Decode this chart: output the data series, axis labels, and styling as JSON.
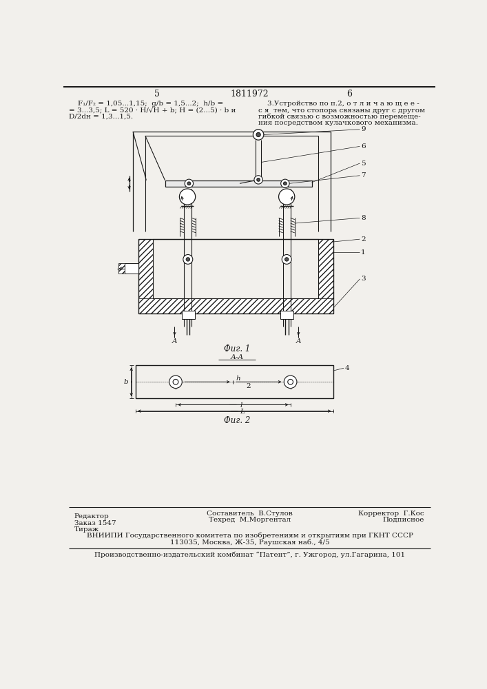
{
  "page_color": "#f2f0ec",
  "line_color": "#1a1a1a",
  "header": {
    "left_text_line1": "    F₁/F₂ = 1,05...1,15;  g/b = 1,5...2;  h/b =",
    "left_text_line2": "= 3...3,5; L = 520 · H/√H + b; H = (2...5) · b и",
    "left_text_line3": "D/2dн = 1,3...1,5.",
    "right_text_line1": "    3.Устройство по п.2, о т л и ч а ю щ е е -",
    "right_text_line2": "с я  тем, что стопора связаны друг с другом",
    "right_text_line3": "гибкой связью с возможностью перемеще-",
    "right_text_line4": "ния посредством кулачкового механизма."
  },
  "fig1_label": "Фиг. 1",
  "fig2_label": "Фиг. 2",
  "aa_label": "А-А",
  "footer": {
    "editor_label": "Редактор",
    "composer_label": "Составитель  В.Стулов",
    "corrector_label": "Корректор  Г.Кос",
    "order_label": "Заказ 1547",
    "techred_label": "Техред  М.Моргентал",
    "podpisnoe_label": "Подписное",
    "tirazh_label": "Тираж",
    "vnipi_line1": "ВНИИПИ Государственного комитета по изобретениям и открытиям при ГКНТ СССР",
    "vnipi_line2": "113035, Москва, Ж-35, Раушская наб., 4/5",
    "proizv_line": "Производственно-издательский комбинат “Патент”, г. Ужгород, ул.Гагарина, 101"
  }
}
